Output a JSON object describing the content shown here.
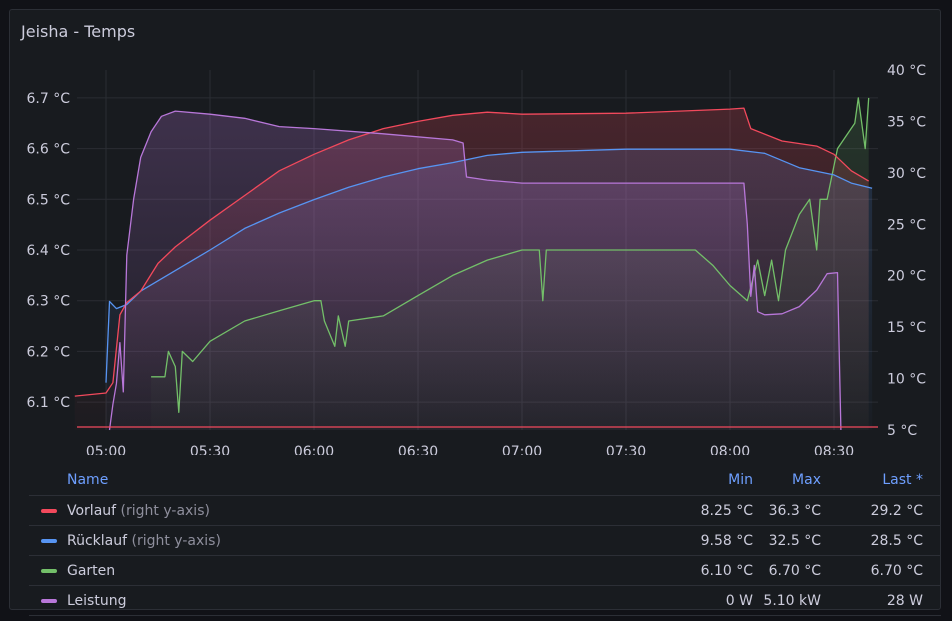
{
  "panel": {
    "title": "Jeisha - Temps"
  },
  "chart_data": {
    "type": "line",
    "x_ticks": [
      "05:00",
      "05:30",
      "06:00",
      "06:30",
      "07:00",
      "07:30",
      "08:00",
      "08:30"
    ],
    "left_axis": {
      "ticks": [
        "6.1 °C",
        "6.2 °C",
        "6.3 °C",
        "6.4 °C",
        "6.5 °C",
        "6.6 °C",
        "6.7 °C"
      ],
      "range": [
        6.045,
        6.755
      ]
    },
    "right_axis": {
      "ticks": [
        "5 °C",
        "10 °C",
        "15 °C",
        "20 °C",
        "25 °C",
        "30 °C",
        "35 °C",
        "40 °C"
      ],
      "range": [
        5,
        40
      ]
    },
    "series": [
      {
        "name": "Vorlauf",
        "suffix": "(right y-axis)",
        "color": "#f2495c",
        "axis": "right",
        "points": [
          [
            "04:51",
            8.3
          ],
          [
            "05:00",
            8.6
          ],
          [
            "05:02",
            9.6
          ],
          [
            "05:04",
            16.2
          ],
          [
            "05:06",
            17.4
          ],
          [
            "05:10",
            18.5
          ],
          [
            "05:15",
            21.2
          ],
          [
            "05:20",
            22.8
          ],
          [
            "05:30",
            25.4
          ],
          [
            "05:40",
            27.8
          ],
          [
            "05:50",
            30.2
          ],
          [
            "06:00",
            31.8
          ],
          [
            "06:10",
            33.2
          ],
          [
            "06:20",
            34.3
          ],
          [
            "06:30",
            35.0
          ],
          [
            "06:40",
            35.6
          ],
          [
            "06:50",
            35.9
          ],
          [
            "07:00",
            35.7
          ],
          [
            "07:30",
            35.8
          ],
          [
            "08:00",
            36.2
          ],
          [
            "08:04",
            36.3
          ],
          [
            "08:06",
            34.3
          ],
          [
            "08:15",
            33.1
          ],
          [
            "08:25",
            32.6
          ],
          [
            "08:30",
            31.8
          ],
          [
            "08:35",
            30.2
          ],
          [
            "08:40",
            29.2
          ]
        ]
      },
      {
        "name": "Rücklauf",
        "suffix": "(right y-axis)",
        "color": "#5794f2",
        "axis": "right",
        "points": [
          [
            "05:00",
            9.6
          ],
          [
            "05:01",
            17.5
          ],
          [
            "05:03",
            16.8
          ],
          [
            "05:06",
            17.2
          ],
          [
            "05:10",
            18.5
          ],
          [
            "05:20",
            20.5
          ],
          [
            "05:30",
            22.5
          ],
          [
            "05:40",
            24.6
          ],
          [
            "05:50",
            26.1
          ],
          [
            "06:00",
            27.4
          ],
          [
            "06:10",
            28.6
          ],
          [
            "06:20",
            29.6
          ],
          [
            "06:30",
            30.4
          ],
          [
            "06:40",
            31.0
          ],
          [
            "06:50",
            31.7
          ],
          [
            "07:00",
            32.0
          ],
          [
            "07:30",
            32.3
          ],
          [
            "08:00",
            32.3
          ],
          [
            "08:10",
            31.9
          ],
          [
            "08:20",
            30.5
          ],
          [
            "08:30",
            29.8
          ],
          [
            "08:35",
            29.0
          ],
          [
            "08:41",
            28.5
          ]
        ]
      },
      {
        "name": "Garten",
        "color": "#73bf69",
        "axis": "left",
        "points": [
          [
            "05:13",
            6.15
          ],
          [
            "05:17",
            6.15
          ],
          [
            "05:18",
            6.2
          ],
          [
            "05:20",
            6.17
          ],
          [
            "05:21",
            6.08
          ],
          [
            "05:22",
            6.2
          ],
          [
            "05:25",
            6.18
          ],
          [
            "05:30",
            6.22
          ],
          [
            "05:40",
            6.26
          ],
          [
            "05:50",
            6.28
          ],
          [
            "06:00",
            6.3
          ],
          [
            "06:02",
            6.3
          ],
          [
            "06:03",
            6.26
          ],
          [
            "06:06",
            6.21
          ],
          [
            "06:07",
            6.27
          ],
          [
            "06:09",
            6.21
          ],
          [
            "06:10",
            6.26
          ],
          [
            "06:20",
            6.27
          ],
          [
            "06:30",
            6.31
          ],
          [
            "06:40",
            6.35
          ],
          [
            "06:50",
            6.38
          ],
          [
            "07:00",
            6.4
          ],
          [
            "07:05",
            6.4
          ],
          [
            "07:06",
            6.3
          ],
          [
            "07:07",
            6.4
          ],
          [
            "07:50",
            6.4
          ],
          [
            "07:55",
            6.37
          ],
          [
            "08:00",
            6.33
          ],
          [
            "08:05",
            6.3
          ],
          [
            "08:08",
            6.38
          ],
          [
            "08:10",
            6.31
          ],
          [
            "08:12",
            6.38
          ],
          [
            "08:14",
            6.3
          ],
          [
            "08:16",
            6.4
          ],
          [
            "08:20",
            6.47
          ],
          [
            "08:23",
            6.5
          ],
          [
            "08:24",
            6.45
          ],
          [
            "08:25",
            6.4
          ],
          [
            "08:26",
            6.5
          ],
          [
            "08:28",
            6.5
          ],
          [
            "08:31",
            6.6
          ],
          [
            "08:36",
            6.65
          ],
          [
            "08:37",
            6.7
          ],
          [
            "08:39",
            6.6
          ],
          [
            "08:40",
            6.7
          ]
        ]
      },
      {
        "name": "Leistung",
        "color": "#b877d9",
        "axis": "right",
        "points": [
          [
            "05:01",
            5.0
          ],
          [
            "05:02",
            7.5
          ],
          [
            "05:03",
            9.5
          ],
          [
            "05:04",
            13.5
          ],
          [
            "05:05",
            8.7
          ],
          [
            "05:06",
            22.0
          ],
          [
            "05:08",
            27.5
          ],
          [
            "05:10",
            31.5
          ],
          [
            "05:13",
            34.0
          ],
          [
            "05:16",
            35.5
          ],
          [
            "05:20",
            36.0
          ],
          [
            "05:30",
            35.7
          ],
          [
            "05:40",
            35.3
          ],
          [
            "05:50",
            34.5
          ],
          [
            "06:00",
            34.3
          ],
          [
            "06:20",
            33.8
          ],
          [
            "06:40",
            33.2
          ],
          [
            "06:43",
            32.9
          ],
          [
            "06:44",
            29.6
          ],
          [
            "06:50",
            29.3
          ],
          [
            "07:00",
            29.0
          ],
          [
            "07:30",
            29.0
          ],
          [
            "07:55",
            29.0
          ],
          [
            "08:04",
            29.0
          ],
          [
            "08:05",
            25.0
          ],
          [
            "08:06",
            18.0
          ],
          [
            "08:07",
            21.0
          ],
          [
            "08:08",
            16.5
          ],
          [
            "08:10",
            16.2
          ],
          [
            "08:15",
            16.3
          ],
          [
            "08:20",
            17.0
          ],
          [
            "08:25",
            18.6
          ],
          [
            "08:28",
            20.2
          ],
          [
            "08:31",
            20.3
          ],
          [
            "08:32",
            5.0
          ]
        ]
      }
    ],
    "legend": {
      "columns": [
        "Name",
        "Min",
        "Max",
        "Last *"
      ],
      "rows": [
        {
          "name": "Vorlauf",
          "suffix": "(right y-axis)",
          "color": "#f2495c",
          "min": "8.25 °C",
          "max": "36.3 °C",
          "last": "29.2 °C"
        },
        {
          "name": "Rücklauf",
          "suffix": "(right y-axis)",
          "color": "#5794f2",
          "min": "9.58 °C",
          "max": "32.5 °C",
          "last": "28.5 °C"
        },
        {
          "name": "Garten",
          "suffix": "",
          "color": "#73bf69",
          "min": "6.10 °C",
          "max": "6.70 °C",
          "last": "6.70 °C"
        },
        {
          "name": "Leistung",
          "suffix": "",
          "color": "#b877d9",
          "min": "0 W",
          "max": "5.10 kW",
          "last": "28 W"
        }
      ]
    }
  }
}
